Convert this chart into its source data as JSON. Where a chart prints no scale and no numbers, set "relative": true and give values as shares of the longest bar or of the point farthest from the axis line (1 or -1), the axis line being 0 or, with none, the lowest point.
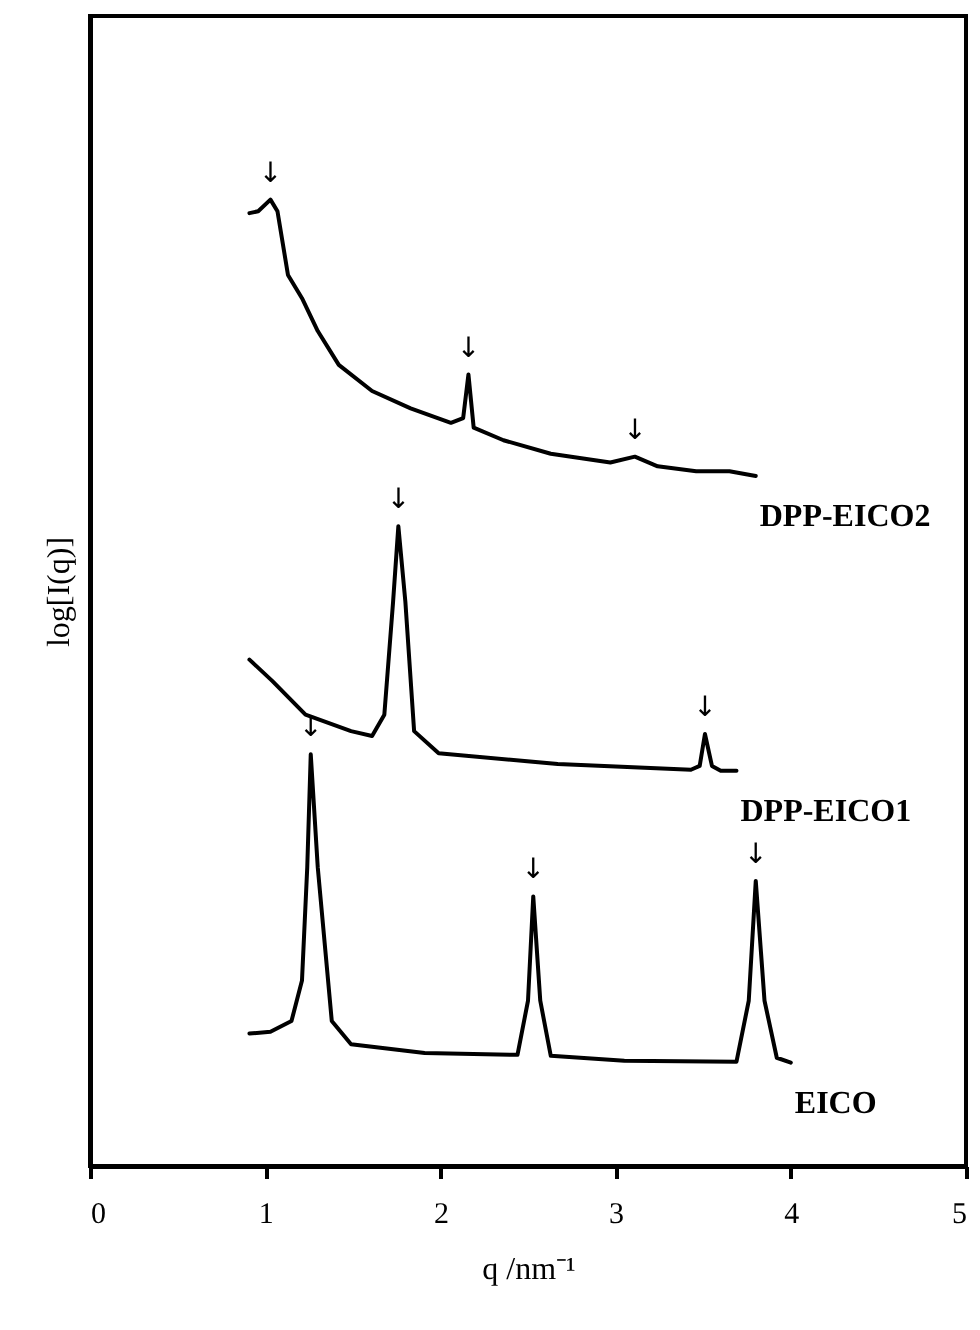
{
  "chart_data": {
    "type": "line",
    "relative": true,
    "xlabel": "q /nm⁻¹",
    "ylabel": "log[I(q)]",
    "xlim": [
      0,
      5
    ],
    "xticks": [
      0,
      1,
      2,
      3,
      4,
      5
    ],
    "grid": false,
    "marker": "none",
    "line_style": "solid",
    "series": [
      {
        "name": "DPP-EICO2",
        "color": "#000000",
        "x": [
          0.91,
          0.96,
          1.03,
          1.07,
          1.13,
          1.21,
          1.3,
          1.42,
          1.61,
          1.83,
          2.06,
          2.13,
          2.16,
          2.19,
          2.36,
          2.63,
          2.97,
          3.11,
          3.24,
          3.46,
          3.65,
          3.8
        ],
        "values": [
          0.986,
          0.988,
          1.0,
          0.988,
          0.922,
          0.898,
          0.864,
          0.829,
          0.802,
          0.784,
          0.769,
          0.774,
          0.819,
          0.764,
          0.751,
          0.737,
          0.728,
          0.734,
          0.724,
          0.719,
          0.719,
          0.714
        ]
      },
      {
        "name": "DPP-EICO1",
        "color": "#000000",
        "x": [
          0.91,
          1.04,
          1.23,
          1.49,
          1.61,
          1.68,
          1.73,
          1.76,
          1.8,
          1.85,
          1.99,
          2.67,
          3.43,
          3.48,
          3.51,
          3.55,
          3.6,
          3.69
        ],
        "values": [
          0.524,
          0.502,
          0.467,
          0.45,
          0.445,
          0.467,
          0.584,
          0.662,
          0.584,
          0.45,
          0.427,
          0.416,
          0.41,
          0.414,
          0.447,
          0.414,
          0.409,
          0.409
        ]
      },
      {
        "name": "EICO",
        "color": "#000000",
        "x": [
          0.91,
          1.03,
          1.15,
          1.21,
          1.24,
          1.26,
          1.3,
          1.38,
          1.49,
          1.91,
          2.44,
          2.5,
          2.53,
          2.57,
          2.63,
          3.05,
          3.69,
          3.76,
          3.8,
          3.85,
          3.92,
          4.0
        ],
        "values": [
          0.137,
          0.139,
          0.15,
          0.192,
          0.309,
          0.426,
          0.309,
          0.15,
          0.126,
          0.117,
          0.115,
          0.171,
          0.279,
          0.171,
          0.114,
          0.109,
          0.108,
          0.171,
          0.295,
          0.171,
          0.112,
          0.107
        ]
      }
    ],
    "annotations": [
      {
        "text": "↓",
        "x": 1.03,
        "y": 1.0
      },
      {
        "text": "↓",
        "x": 2.16,
        "y": 0.819
      },
      {
        "text": "↓",
        "x": 3.11,
        "y": 0.734
      },
      {
        "text": "↓",
        "x": 1.76,
        "y": 0.662
      },
      {
        "text": "↓",
        "x": 3.51,
        "y": 0.447
      },
      {
        "text": "↓",
        "x": 1.26,
        "y": 0.426
      },
      {
        "text": "↓",
        "x": 2.53,
        "y": 0.279
      },
      {
        "text": "↓",
        "x": 3.8,
        "y": 0.295
      }
    ]
  }
}
